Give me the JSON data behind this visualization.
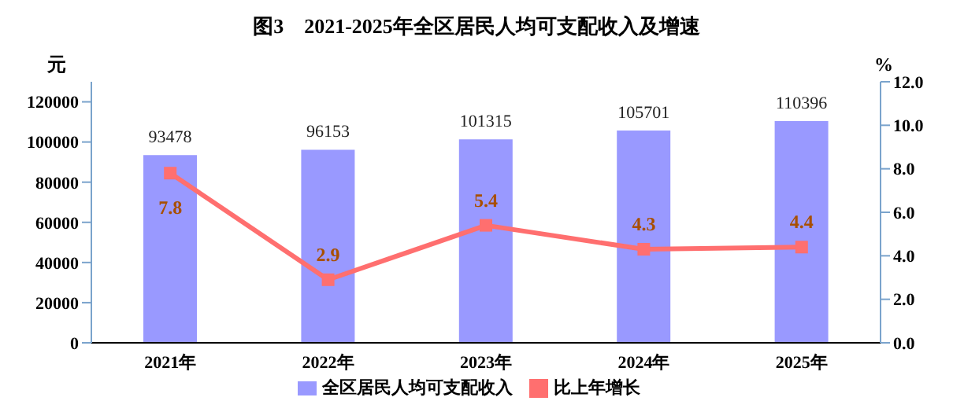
{
  "chart_data": {
    "type": "bar",
    "title": "图3　2021-2025年全区居民人均可支配收入及增速",
    "ylabel": "元",
    "y2label": "%",
    "categories": [
      "2021年",
      "2022年",
      "2023年",
      "2024年",
      "2025年"
    ],
    "series": [
      {
        "name": "全区居民人均可支配收入",
        "color": "#9999ff",
        "values": [
          93478,
          96153,
          101315,
          105701,
          110396
        ]
      },
      {
        "name": "比上年增长",
        "type": "line",
        "axis": "y2",
        "color": "#ff6f6f",
        "values": [
          7.8,
          2.9,
          5.4,
          4.3,
          4.4
        ]
      }
    ],
    "ylim": [
      0,
      130000
    ],
    "yticks": [
      0,
      20000,
      40000,
      60000,
      80000,
      100000,
      120000
    ],
    "y2lim": [
      0,
      12
    ],
    "y2ticks": [
      {
        "value": 0,
        "label": "0.0"
      },
      {
        "value": 2,
        "label": "2.0"
      },
      {
        "value": 4,
        "label": "4.0"
      },
      {
        "value": 6,
        "label": "6.0"
      },
      {
        "value": 8,
        "label": "8.0"
      },
      {
        "value": 10,
        "label": "10.0"
      },
      {
        "value": 12,
        "label": "12.0"
      }
    ],
    "data_labels": true,
    "legend": "bottom",
    "marker": "square",
    "grid": false
  }
}
